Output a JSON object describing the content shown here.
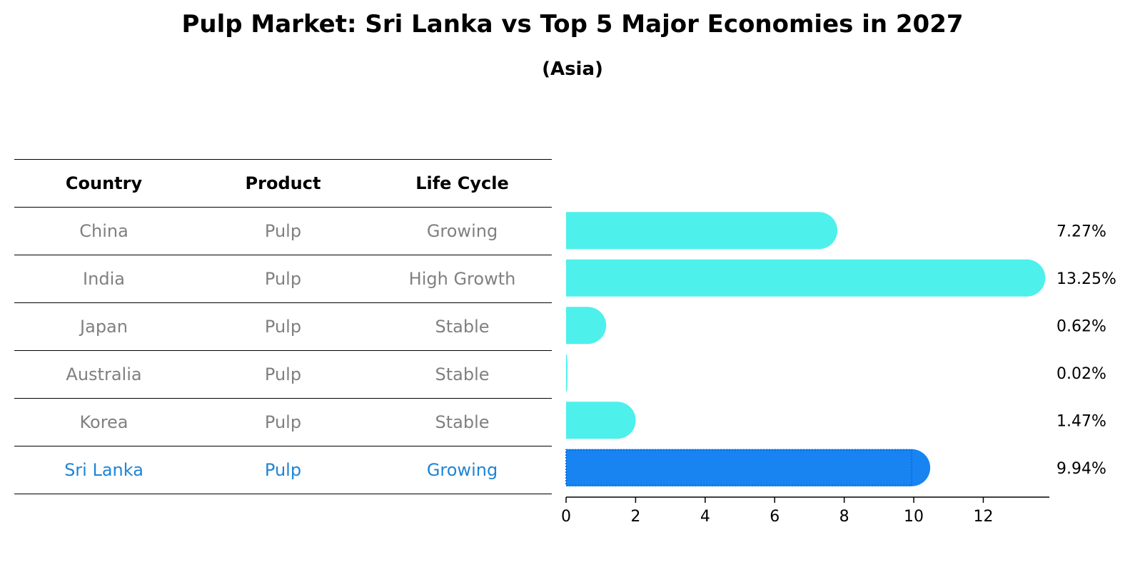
{
  "chart_data": {
    "type": "bar",
    "orientation": "horizontal",
    "title": "Pulp Market: Sri Lanka vs Top 5 Major Economies in 2027",
    "subtitle": "(Asia)",
    "columns": [
      "Country",
      "Product",
      "Life Cycle"
    ],
    "rows": [
      {
        "country": "China",
        "product": "Pulp",
        "life_cycle": "Growing",
        "value": 7.27,
        "label": "7.27%",
        "highlight": false
      },
      {
        "country": "India",
        "product": "Pulp",
        "life_cycle": "High Growth",
        "value": 13.25,
        "label": "13.25%",
        "highlight": false
      },
      {
        "country": "Japan",
        "product": "Pulp",
        "life_cycle": "Stable",
        "value": 0.62,
        "label": "0.62%",
        "highlight": false
      },
      {
        "country": "Australia",
        "product": "Pulp",
        "life_cycle": "Stable",
        "value": 0.02,
        "label": "0.02%",
        "highlight": false
      },
      {
        "country": "Korea",
        "product": "Pulp",
        "life_cycle": "Stable",
        "value": 1.47,
        "label": "1.47%",
        "highlight": false
      },
      {
        "country": "Sri Lanka",
        "product": "Pulp",
        "life_cycle": "Growing",
        "value": 9.94,
        "label": "9.94%",
        "highlight": true
      }
    ],
    "xticks": [
      0,
      2,
      4,
      6,
      8,
      10,
      12
    ],
    "xlim": [
      0,
      13.9
    ],
    "colors": {
      "bar": "#4ef0eb",
      "highlight_bar": "#1784f2",
      "highlight_text": "#1e85d6",
      "muted_text": "#808080"
    }
  }
}
